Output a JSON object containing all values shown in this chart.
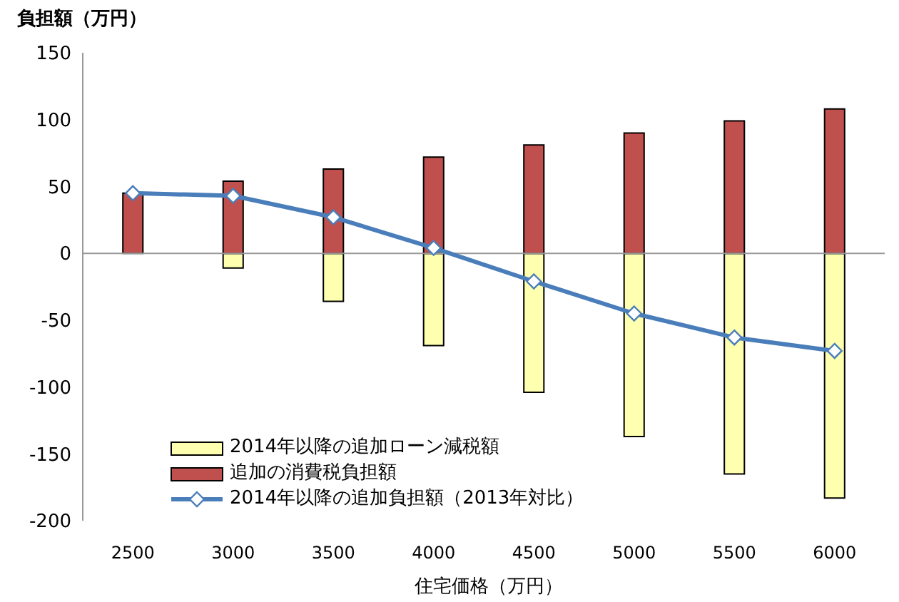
{
  "chart_data": {
    "type": "bar",
    "ylabel": "負担額（万円）",
    "xlabel": "住宅価格（万円）",
    "categories": [
      "2500",
      "3000",
      "3500",
      "4000",
      "4500",
      "5000",
      "5500",
      "6000"
    ],
    "stacked": true,
    "series": [
      {
        "name": "2014年以降の追加ローン減税額",
        "color": "#ffffb0",
        "values": [
          0,
          -11,
          -36,
          -69,
          -104,
          -137,
          -165,
          -183
        ]
      },
      {
        "name": "追加の消費税負担額",
        "color": "#c0504d",
        "values": [
          45,
          54,
          63,
          72,
          81,
          90,
          99,
          108
        ]
      },
      {
        "name": "2014年以降の追加負担額（2013年対比）",
        "type": "line",
        "color": "#4a7ebb",
        "marker": "diamond",
        "values": [
          45,
          43,
          27,
          4,
          -21,
          -45,
          -63,
          -73
        ]
      }
    ],
    "ylim": [
      -200,
      150
    ],
    "yticks": [
      -200,
      -150,
      -100,
      -50,
      0,
      50,
      100,
      150
    ],
    "ref_lines": [
      {
        "axis": "y",
        "value": 0,
        "color": "#999999"
      }
    ],
    "grid": false,
    "legend": "bottom left"
  }
}
